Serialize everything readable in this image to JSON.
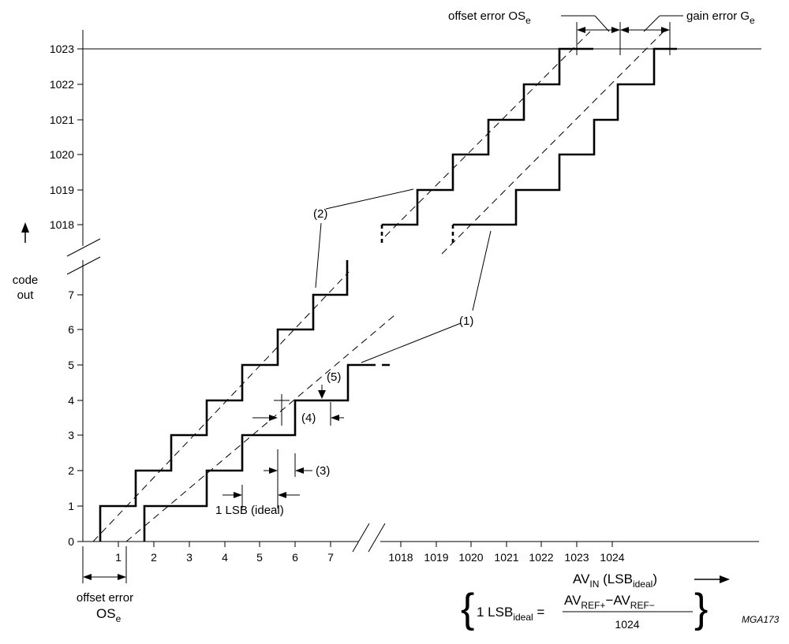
{
  "figure_id": "MGA173",
  "y_axis": {
    "label_line1": "code",
    "label_line2": "out",
    "low_ticks": [
      "0",
      "1",
      "2",
      "3",
      "4",
      "5",
      "6",
      "7"
    ],
    "high_ticks": [
      "1018",
      "1019",
      "1020",
      "1021",
      "1022",
      "1023"
    ]
  },
  "x_axis": {
    "low_ticks": [
      "1",
      "2",
      "3",
      "4",
      "5",
      "6",
      "7"
    ],
    "high_ticks": [
      "1018",
      "1019",
      "1020",
      "1021",
      "1022",
      "1023",
      "1024"
    ],
    "label_main": "AV",
    "label_sub": "IN",
    "label_rest": " (LSB",
    "label_rest_sub": "ideal",
    "label_close": ")"
  },
  "annotations": {
    "curve_1": "(1)",
    "curve_2": "(2)",
    "step_3": "(3)",
    "step_4": "(4)",
    "step_5": "(5)",
    "one_lsb": "1 LSB (ideal)",
    "offset_error_top": "offset error OS",
    "offset_error_top_sub": "e",
    "gain_error": "gain error G",
    "gain_error_sub": "e",
    "offset_error_bottom_line1": "offset error",
    "offset_error_bottom_line2": "OS",
    "offset_error_bottom_sub": "e"
  },
  "formula": {
    "lhs": "1 LSB",
    "lhs_sub": "ideal",
    "equals": " =",
    "num_a": "AV",
    "num_a_sub": "REF+",
    "minus": "−AV",
    "num_b_sub": "REF−",
    "denominator": "1024"
  }
}
